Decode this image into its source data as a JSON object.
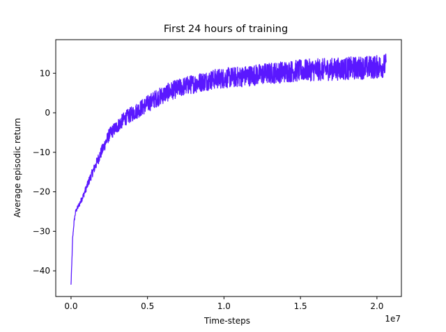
{
  "chart_data": {
    "type": "line",
    "title": "First 24 hours of training",
    "xlabel": "Time-steps",
    "ylabel": "Average episodic return",
    "x_offset_label": "1e7",
    "xlim": [
      -0.1,
      2.16
    ],
    "ylim": [
      -46.5,
      18.5
    ],
    "xticks": [
      0.0,
      0.5,
      1.0,
      1.5,
      2.0
    ],
    "xtick_labels": [
      "0.0",
      "0.5",
      "1.0",
      "1.5",
      "2.0"
    ],
    "yticks": [
      -40,
      -30,
      -20,
      -10,
      0,
      10
    ],
    "ytick_labels": [
      "−40",
      "−30",
      "−20",
      "−10",
      "0",
      "10"
    ],
    "grid": false,
    "legend": "none",
    "line_color": "#5a18ff",
    "series": [
      {
        "trend_x": [
          0.0,
          0.005,
          0.01,
          0.02,
          0.03,
          0.05,
          0.08,
          0.12,
          0.18,
          0.25,
          0.35,
          0.45,
          0.55,
          0.65,
          0.75,
          0.85,
          0.95,
          1.1,
          1.25,
          1.4,
          1.55,
          1.7,
          1.85,
          2.0,
          2.06
        ],
        "trend_y": [
          -43.5,
          -38.0,
          -32.0,
          -27.5,
          -25.0,
          -23.5,
          -21.0,
          -17.0,
          -11.5,
          -5.5,
          -1.5,
          1.0,
          3.5,
          5.5,
          6.8,
          7.8,
          8.6,
          9.1,
          9.8,
          10.4,
          10.8,
          11.0,
          11.3,
          11.6,
          12.0
        ],
        "noise_x": [
          0.0,
          0.2,
          0.5,
          1.0,
          1.5,
          2.06
        ],
        "noise_amplitude": [
          0.3,
          1.5,
          2.2,
          2.6,
          2.8,
          3.0
        ],
        "min": -43.5,
        "max": 16.0,
        "x_end": 2.06
      }
    ]
  }
}
